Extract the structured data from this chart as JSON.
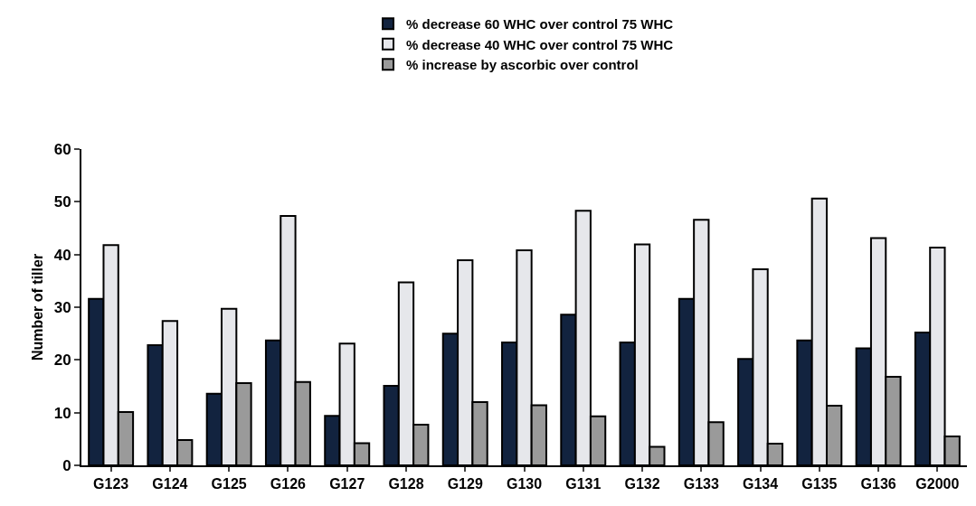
{
  "chart_data": {
    "type": "bar",
    "ylabel": "Number of tiller",
    "categories": [
      "G123",
      "G124",
      "G125",
      "G126",
      "G127",
      "G128",
      "G129",
      "G130",
      "G131",
      "G132",
      "G133",
      "G134",
      "G135",
      "G136",
      "G2000"
    ],
    "series": [
      {
        "name": "% decrease 60 WHC over control 75 WHC",
        "color": "#12233f",
        "values": [
          31.6,
          22.8,
          13.6,
          23.7,
          9.4,
          15.1,
          25.0,
          23.3,
          28.6,
          23.3,
          31.6,
          20.2,
          23.7,
          22.2,
          25.2
        ]
      },
      {
        "name": "% decrease 40 WHC over control 75 WHC",
        "color": "#e6e7eb",
        "values": [
          41.8,
          27.4,
          29.7,
          47.3,
          23.1,
          34.7,
          38.9,
          40.8,
          48.3,
          41.9,
          46.6,
          37.2,
          50.6,
          43.1,
          41.3
        ]
      },
      {
        "name": "% increase by ascorbic over control",
        "color": "#9a9a9a",
        "values": [
          10.1,
          4.8,
          15.6,
          15.8,
          4.2,
          7.7,
          12.0,
          11.4,
          9.3,
          3.5,
          8.2,
          4.1,
          11.3,
          16.8,
          5.5
        ]
      }
    ],
    "ylim": [
      0,
      60
    ],
    "yticks": [
      0,
      10,
      20,
      30,
      40,
      50,
      60
    ],
    "grid": false,
    "legend": "top"
  }
}
